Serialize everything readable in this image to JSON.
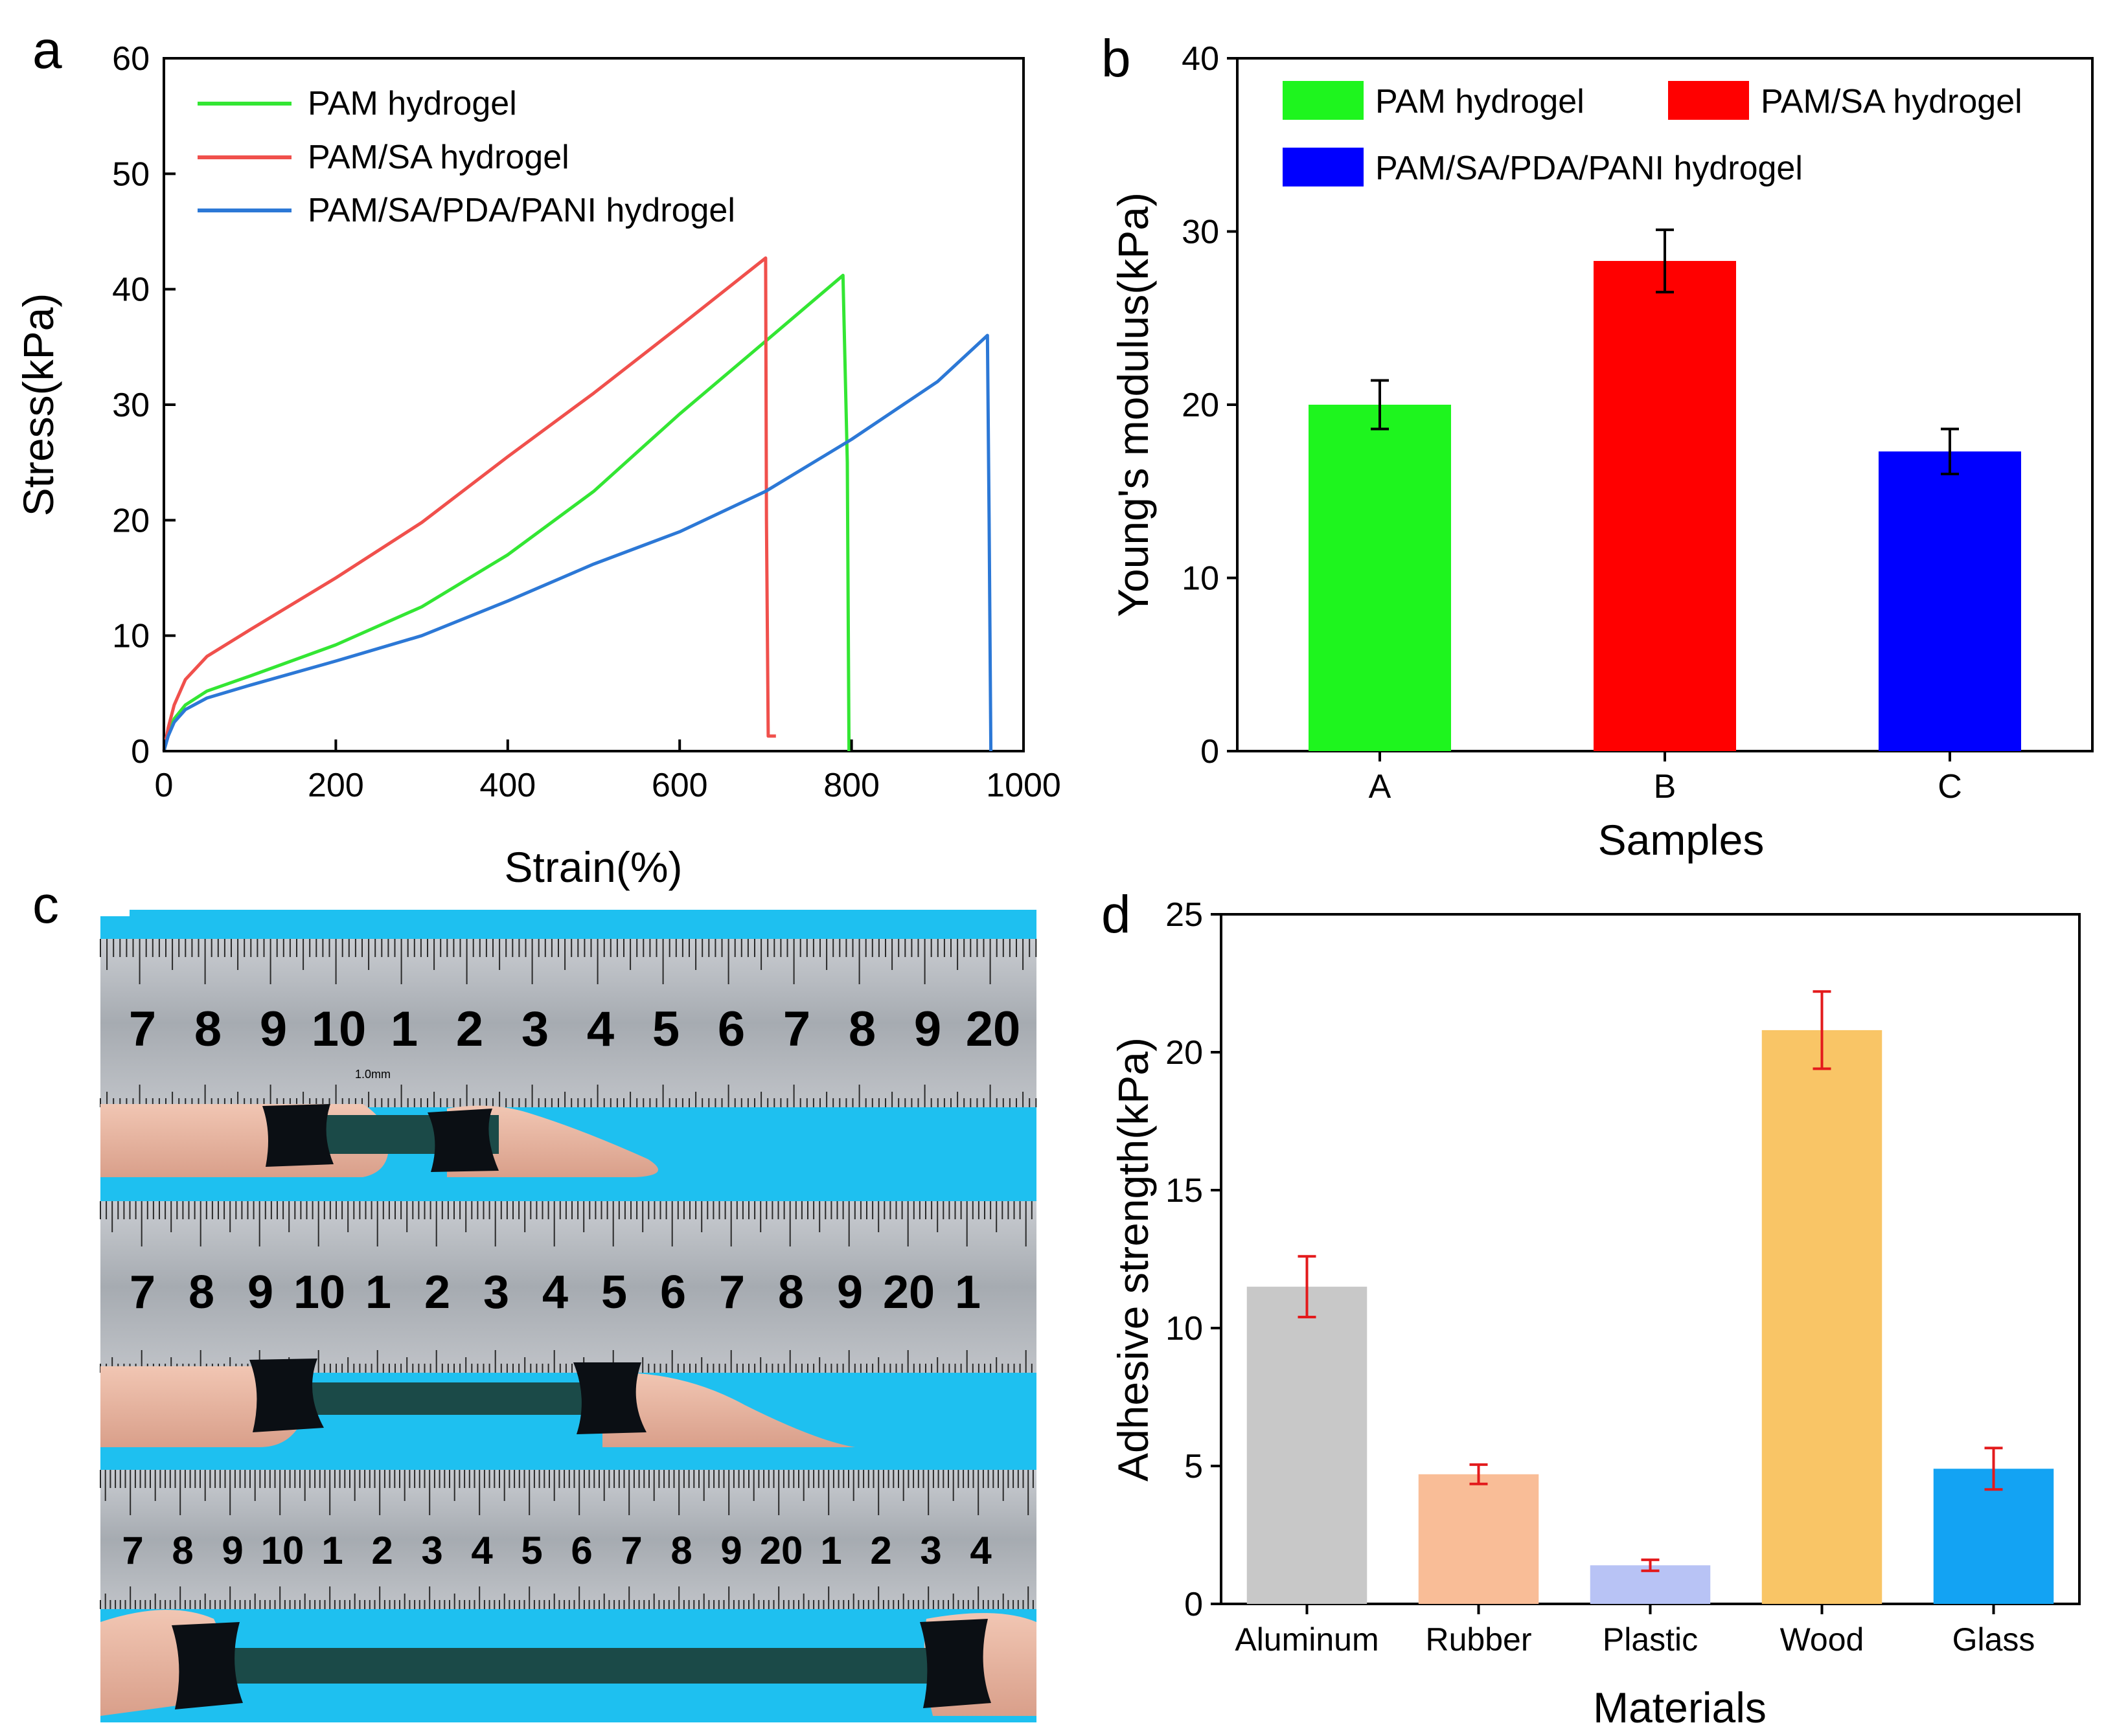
{
  "panels": {
    "a": {
      "letter": "a"
    },
    "b": {
      "letter": "b"
    },
    "c": {
      "letter": "c"
    },
    "d": {
      "letter": "d"
    }
  },
  "chart_data": [
    {
      "id": "a",
      "type": "line",
      "xlabel": "Strain(%)",
      "ylabel": "Stress(kPa)",
      "xlim": [
        0,
        1000
      ],
      "ylim": [
        0,
        60
      ],
      "xticks": [
        "0",
        "200",
        "400",
        "600",
        "800",
        "1000"
      ],
      "yticks": [
        "0",
        "10",
        "20",
        "30",
        "40",
        "50",
        "60"
      ],
      "legend_position": "top-left",
      "series": [
        {
          "name": "PAM hydrogel",
          "color": "#33e633",
          "x": [
            0,
            5,
            12,
            25,
            50,
            100,
            200,
            300,
            400,
            500,
            600,
            700,
            790,
            795,
            797
          ],
          "y": [
            0,
            1.5,
            2.8,
            4.0,
            5.2,
            6.5,
            9.2,
            12.5,
            17.0,
            22.5,
            29.2,
            35.5,
            41.2,
            25,
            0
          ]
        },
        {
          "name": "PAM/SA hydrogel",
          "color": "#f0504c",
          "x": [
            0,
            5,
            12,
            25,
            50,
            100,
            200,
            300,
            400,
            500,
            600,
            700,
            701,
            703,
            712
          ],
          "y": [
            0,
            2.0,
            4.0,
            6.2,
            8.2,
            10.5,
            15.0,
            19.8,
            25.5,
            31.0,
            36.8,
            42.7,
            20,
            1.3,
            1.3
          ]
        },
        {
          "name": "PAM/SA/PDA/PANI hydrogel",
          "color": "#2c78d6",
          "x": [
            0,
            5,
            12,
            25,
            50,
            100,
            200,
            300,
            400,
            500,
            600,
            700,
            800,
            900,
            958,
            960,
            962
          ],
          "y": [
            0,
            1.3,
            2.5,
            3.6,
            4.6,
            5.7,
            7.8,
            10.0,
            13.0,
            16.2,
            19.0,
            22.5,
            27.0,
            32.0,
            36.0,
            20,
            0
          ]
        }
      ]
    },
    {
      "id": "b",
      "type": "bar",
      "xlabel": "Samples",
      "ylabel": "Young's modulus(kPa)",
      "ylim": [
        0,
        40
      ],
      "yticks": [
        "0",
        "10",
        "20",
        "30",
        "40"
      ],
      "categories": [
        "A",
        "B",
        "C"
      ],
      "values": [
        20.0,
        28.3,
        17.3
      ],
      "errors": [
        1.4,
        1.8,
        1.3
      ],
      "colors": [
        "#1ef51e",
        "#ff0000",
        "#0000ff"
      ],
      "legend": [
        "PAM hydrogel",
        "PAM/SA hydrogel",
        "PAM/SA/PDA/PANI hydrogel"
      ]
    },
    {
      "id": "d",
      "type": "bar",
      "xlabel": "Materials",
      "ylabel": "Adhesive strength(kPa)",
      "ylim": [
        0,
        25
      ],
      "yticks": [
        "0",
        "5",
        "10",
        "15",
        "20",
        "25"
      ],
      "categories": [
        "Aluminum",
        "Rubber",
        "Plastic",
        "Wood",
        "Glass"
      ],
      "values": [
        11.5,
        4.7,
        1.4,
        20.8,
        4.9
      ],
      "errors": [
        1.1,
        0.35,
        0.2,
        1.4,
        0.75
      ],
      "colors": [
        "#c8c8c8",
        "#f9bd97",
        "#b8c3f5",
        "#f9c566",
        "#13a3f3"
      ],
      "error_color": "#e31a1c"
    }
  ],
  "photo": {
    "ruler_rows": [
      [
        "7",
        "8",
        "9",
        "10",
        "1",
        "2",
        "3",
        "4",
        "5",
        "6",
        "7",
        "8",
        "9",
        "20"
      ],
      [
        "7",
        "8",
        "9",
        "10",
        "1",
        "2",
        "3",
        "4",
        "5",
        "6",
        "7",
        "8",
        "9",
        "20",
        "1"
      ],
      [
        "7",
        "8",
        "9",
        "10",
        "1",
        "2",
        "3",
        "4",
        "5",
        "6",
        "7",
        "8",
        "9",
        "20",
        "1",
        "2",
        "3",
        "4"
      ]
    ],
    "ruler_unit_label": "1.0mm",
    "colors": {
      "background": "#1ec0f0",
      "ruler": "#aeb2b8",
      "skin": "#eab8a4",
      "gel": "#1b4a48",
      "clip": "#0b0f14"
    }
  }
}
